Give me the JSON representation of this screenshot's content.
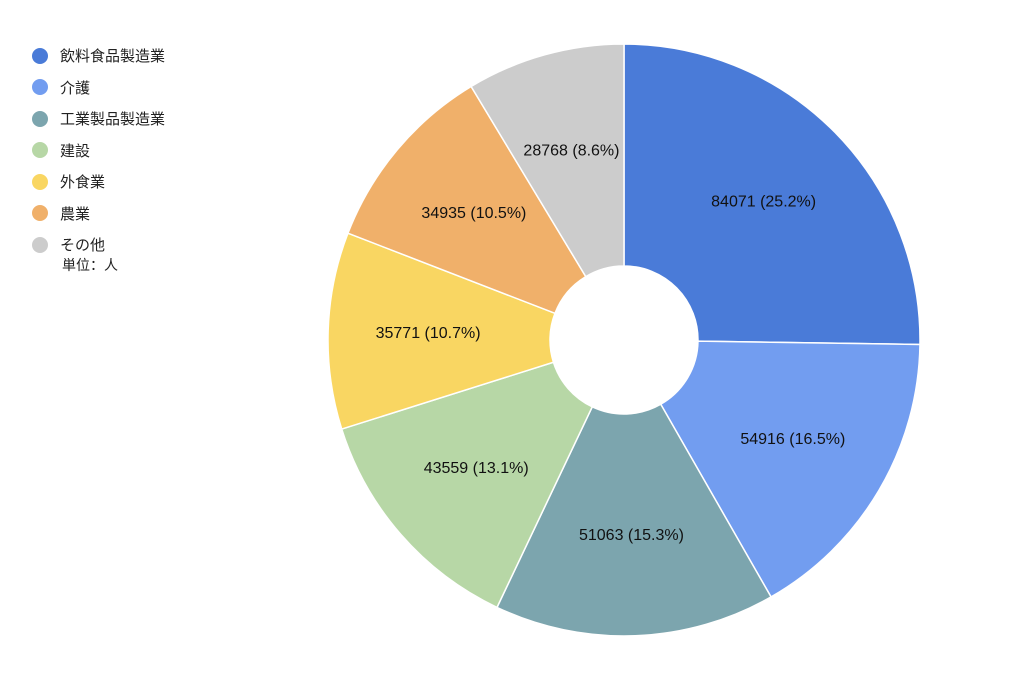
{
  "chart_data": {
    "type": "pie",
    "title": "",
    "unit_note": "単位：人",
    "donut": true,
    "legend_position": "top-left",
    "start_angle": "12-o'clock",
    "direction": "clockwise",
    "slices": [
      {
        "label": "飲料食品製造業",
        "value": 84071,
        "display": "84071 (25.2%)",
        "color": "#4a7bd8"
      },
      {
        "label": "介護",
        "value": 54916,
        "display": "54916 (16.5%)",
        "color": "#729df0"
      },
      {
        "label": "工業製品製造業",
        "value": 51063,
        "display": "51063 (15.3%)",
        "color": "#7ca5ae"
      },
      {
        "label": "建設",
        "value": 43559,
        "display": "43559 (13.1%)",
        "color": "#b7d7a6"
      },
      {
        "label": "外食業",
        "value": 35771,
        "display": "35771 (10.7%)",
        "color": "#f9d662"
      },
      {
        "label": "農業",
        "value": 34935,
        "display": "34935 (10.5%)",
        "color": "#f0b06a"
      },
      {
        "label": "その他",
        "value": 28768,
        "display": "28768 (8.6%)",
        "color": "#cccccc"
      }
    ]
  }
}
